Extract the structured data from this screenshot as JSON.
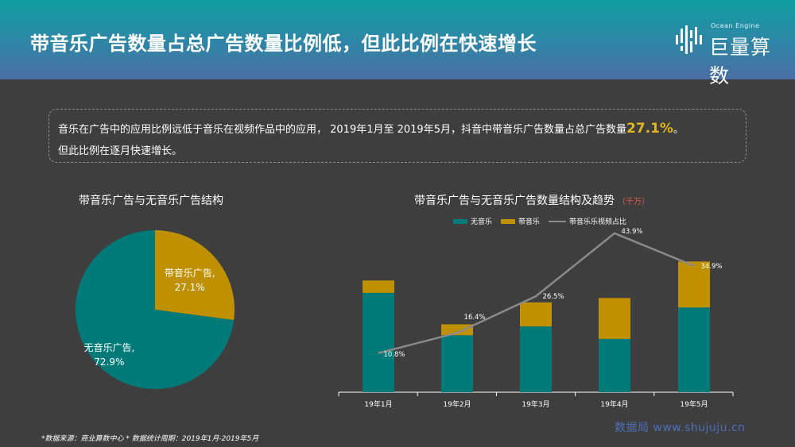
{
  "title": "带音乐广告数量占总广告数量比例低，但此比例在快速增长",
  "brand": {
    "small_text": "Ocean Engine",
    "name": "巨量算数"
  },
  "intro": {
    "line1_prefix": "音乐在广告中的应用比例远低于音乐在视频作品中的应用， 2019年1月至 2019年5月，抖音中带音乐广告数量占总广告数量",
    "highlight": "27.1%",
    "line1_suffix": "。",
    "line2": "但此比例在逐月快速增长。"
  },
  "footnote": "*数据来源：商业算数中心 * 数据统计周期：2019年1月-2019年5月",
  "watermark": "数据局 www.shujuju.cn",
  "colors": {
    "teal": "#007a78",
    "gold": "#bf9000",
    "line": "#8a8a8a"
  },
  "chart_data": [
    {
      "type": "pie",
      "title": "带音乐广告与无音乐广告结构",
      "slices": [
        {
          "name": "带音乐广告",
          "value": 27.1,
          "label": "27.1%",
          "color": "#bf9000"
        },
        {
          "name": "无音乐广告",
          "value": 72.9,
          "label": "72.9%",
          "color": "#007a78"
        }
      ]
    },
    {
      "type": "bar",
      "stacked": true,
      "title": "带音乐广告与无音乐广告数量结构及趋势",
      "unit": "（千万）",
      "categories": [
        "19年1月",
        "19年2月",
        "19年3月",
        "19年4月",
        "19年5月"
      ],
      "series": [
        {
          "name": "无音乐",
          "color": "#007a78",
          "values": [
            13.6,
            7.8,
            9.0,
            7.3,
            11.6
          ]
        },
        {
          "name": "带音乐",
          "color": "#bf9000",
          "values": [
            1.7,
            1.5,
            3.3,
            5.6,
            6.3
          ]
        }
      ],
      "line_series": {
        "name": "带音乐乐视频占比",
        "color": "#8a8a8a",
        "values": [
          10.8,
          16.4,
          26.5,
          43.9,
          34.9
        ],
        "labels": [
          "10.8%",
          "16.4%",
          "26.5%",
          "43.9%",
          "34.9%"
        ]
      },
      "legend_position": "top",
      "grid": false
    }
  ]
}
